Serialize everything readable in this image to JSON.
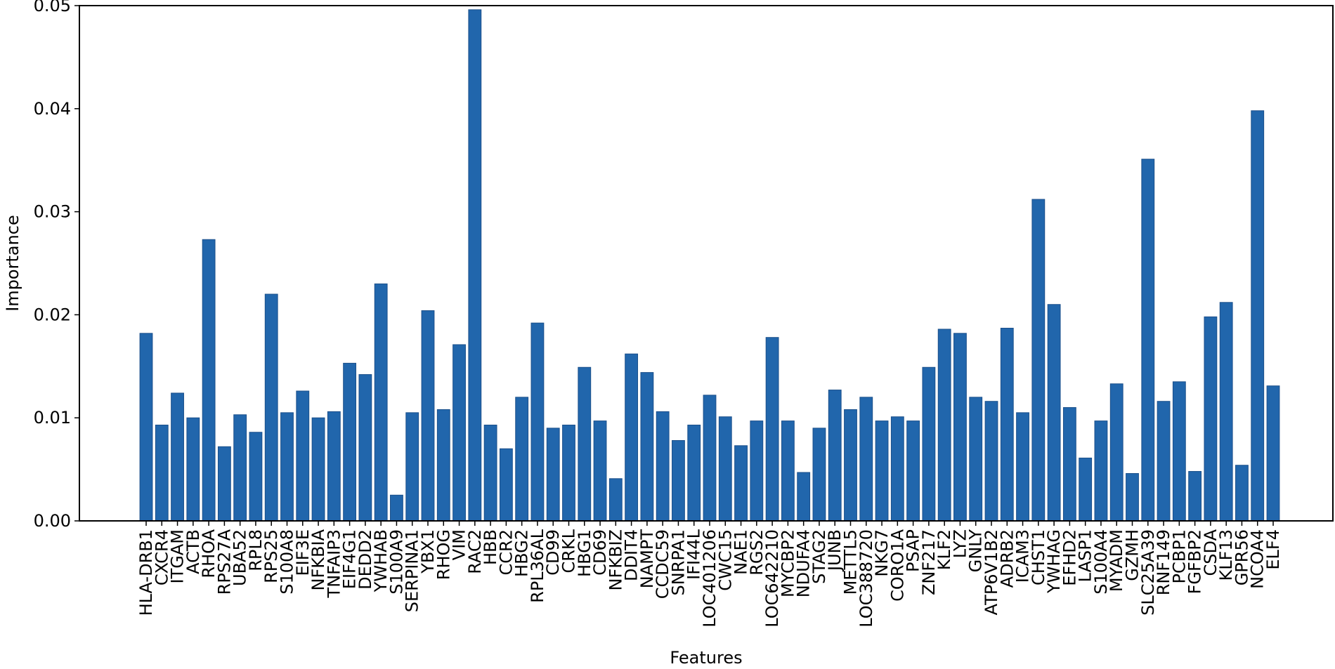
{
  "chart_data": {
    "type": "bar",
    "title": "",
    "xlabel": "Features",
    "ylabel": "Importance",
    "ylim": [
      0,
      0.05
    ],
    "yticks": [
      0.0,
      0.01,
      0.02,
      0.03,
      0.04,
      0.05
    ],
    "ytick_labels": [
      "0.00",
      "0.01",
      "0.02",
      "0.03",
      "0.04",
      "0.05"
    ],
    "grid": false,
    "legend": "none",
    "bar_color": "#2166ac",
    "bar_edge_color": "#1b4f8a",
    "categories": [
      "HLA-DRB1",
      "CXCR4",
      "ITGAM",
      "ACTB",
      "RHOA",
      "RPS27A",
      "UBA52",
      "RPL8",
      "RPS25",
      "S100A8",
      "EIF3E",
      "NFKBIA",
      "TNFAIP3",
      "EIF4G1",
      "DEDD2",
      "YWHAB",
      "S100A9",
      "SERPINA1",
      "YBX1",
      "RHOG",
      "VIM",
      "RAC2",
      "HBB",
      "CCR2",
      "HBG2",
      "RPL36AL",
      "CD99",
      "CRKL",
      "HBG1",
      "CD69",
      "NFKBIZ",
      "DDIT4",
      "NAMPT",
      "CCDC59",
      "SNRPA1",
      "IFI44L",
      "LOC401206",
      "CWC15",
      "NAE1",
      "RGS2",
      "LOC642210",
      "MYCBP2",
      "NDUFA4",
      "STAG2",
      "JUNB",
      "METTL5",
      "LOC388720",
      "NKG7",
      "CORO1A",
      "PSAP",
      "ZNF217",
      "KLF2",
      "LYZ",
      "GNLY",
      "ATP6V1B2",
      "ADRB2",
      "ICAM3",
      "CHST1",
      "YWHAG",
      "EFHD2",
      "LASP1",
      "S100A4",
      "MYADM",
      "GZMH",
      "SLC25A39",
      "RNF149",
      "PCBP1",
      "FGFBP2",
      "CSDA",
      "KLF13",
      "GPR56",
      "NCOA4",
      "ELF4"
    ],
    "values": [
      0.0182,
      0.0093,
      0.0124,
      0.01,
      0.0273,
      0.0072,
      0.0103,
      0.0086,
      0.022,
      0.0105,
      0.0126,
      0.01,
      0.0106,
      0.0153,
      0.0142,
      0.023,
      0.0025,
      0.0105,
      0.0204,
      0.0108,
      0.0171,
      0.0496,
      0.0093,
      0.007,
      0.012,
      0.0192,
      0.009,
      0.0093,
      0.0149,
      0.0097,
      0.0041,
      0.0162,
      0.0144,
      0.0106,
      0.0078,
      0.0093,
      0.0122,
      0.0101,
      0.0073,
      0.0097,
      0.0178,
      0.0097,
      0.0047,
      0.009,
      0.0127,
      0.0108,
      0.012,
      0.0097,
      0.0101,
      0.0097,
      0.0149,
      0.0186,
      0.0182,
      0.012,
      0.0116,
      0.0187,
      0.0105,
      0.0312,
      0.021,
      0.011,
      0.0061,
      0.0097,
      0.0133,
      0.0046,
      0.0351,
      0.0116,
      0.0135,
      0.0048,
      0.0198,
      0.0212,
      0.0054,
      0.0398,
      0.0131
    ]
  }
}
